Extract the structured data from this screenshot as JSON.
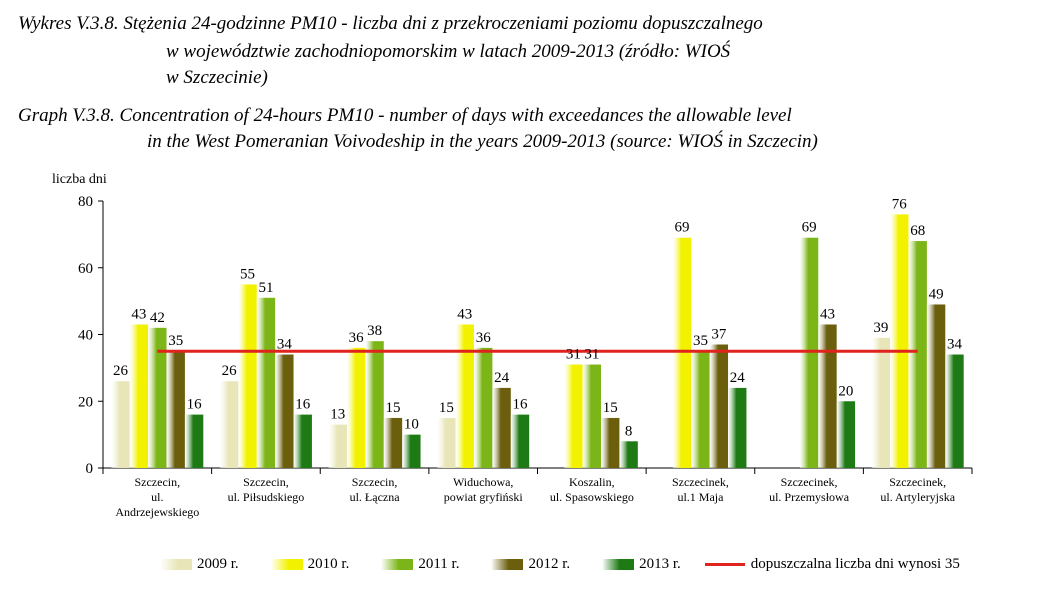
{
  "caption_pl": {
    "line1": "Wykres V.3.8. Stężenia 24-godzinne PM10 - liczba dni z przekroczeniami poziomu dopuszczalnego",
    "line2": "w województwie zachodniopomorskim w latach 2009-2013 (źródło: WIOŚ",
    "line3": "w Szczecinie)"
  },
  "caption_en": {
    "line1": "Graph V.3.8. Concentration of 24-hours PM10  - number of days with exceedances the allowable level",
    "line2": "in the West Pomeranian Voivodeship in the years 2009-2013 (source: WIOŚ in Szczecin)"
  },
  "chart_data": {
    "type": "bar",
    "ylabel": "liczba dni",
    "ylim": [
      0,
      80
    ],
    "yticks": [
      0,
      20,
      40,
      60,
      80
    ],
    "categories": [
      [
        "Szczecin,",
        "ul.",
        "Andrzejewskiego"
      ],
      [
        "Szczecin,",
        "ul. Piłsudskiego"
      ],
      [
        "Szczecin,",
        "ul. Łączna"
      ],
      [
        "Widuchowa,",
        "powiat gryfiński"
      ],
      [
        "Koszalin,",
        "ul. Spasowskiego"
      ],
      [
        "Szczecinek,",
        "ul.1 Maja"
      ],
      [
        "Szczecinek,",
        "ul. Przemysłowa"
      ],
      [
        "Szczecinek,",
        "ul. Artyleryjska"
      ]
    ],
    "series": [
      {
        "name": "2009 r.",
        "color": "#e8e6b8",
        "values": [
          26,
          26,
          13,
          15,
          null,
          null,
          null,
          39
        ]
      },
      {
        "name": "2010 r.",
        "color": "#f2f200",
        "values": [
          43,
          55,
          36,
          43,
          31,
          69,
          null,
          76
        ]
      },
      {
        "name": "2011 r.",
        "color": "#7cb518",
        "values": [
          42,
          51,
          38,
          36,
          31,
          35,
          69,
          68
        ]
      },
      {
        "name": "2012 r.",
        "color": "#6b5f0e",
        "values": [
          35,
          34,
          15,
          24,
          15,
          37,
          43,
          49
        ]
      },
      {
        "name": "2013 r.",
        "color": "#1d7a14",
        "values": [
          16,
          16,
          10,
          16,
          8,
          24,
          20,
          34
        ]
      }
    ],
    "threshold": {
      "label": "dopuszczalna liczba dni wynosi 35",
      "value": 35,
      "color": "#e0231c"
    },
    "grid": false,
    "legend_position": "bottom"
  }
}
